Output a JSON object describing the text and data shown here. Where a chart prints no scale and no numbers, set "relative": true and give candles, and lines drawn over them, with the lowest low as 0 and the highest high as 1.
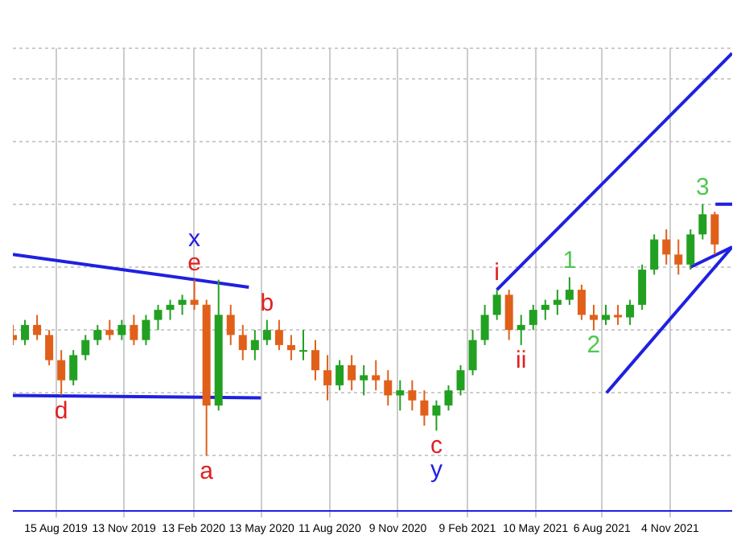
{
  "chart_data": {
    "type": "candlestick",
    "relative": true,
    "grid": true,
    "legend": false,
    "x": [
      "2019-06-19",
      "2019-07-05",
      "2019-07-21",
      "2019-08-06",
      "2019-08-22",
      "2019-09-07",
      "2019-09-23",
      "2019-10-09",
      "2019-10-25",
      "2019-11-10",
      "2019-11-26",
      "2019-12-12",
      "2019-12-28",
      "2020-01-13",
      "2020-01-29",
      "2020-02-14",
      "2020-03-01",
      "2020-03-17",
      "2020-04-02",
      "2020-04-18",
      "2020-05-04",
      "2020-05-20",
      "2020-06-05",
      "2020-06-21",
      "2020-07-07",
      "2020-07-23",
      "2020-08-08",
      "2020-08-24",
      "2020-09-09",
      "2020-09-25",
      "2020-10-11",
      "2020-10-27",
      "2020-11-12",
      "2020-11-28",
      "2020-12-14",
      "2020-12-30",
      "2021-01-15",
      "2021-01-31",
      "2021-02-16",
      "2021-03-04",
      "2021-03-20",
      "2021-04-05",
      "2021-04-21",
      "2021-05-07",
      "2021-05-23",
      "2021-06-08",
      "2021-06-24",
      "2021-07-10",
      "2021-07-26",
      "2021-08-11",
      "2021-08-27",
      "2021-09-12",
      "2021-09-28",
      "2021-10-14",
      "2021-10-30",
      "2021-11-15",
      "2021-12-01",
      "2021-12-17",
      "2022-01-02"
    ],
    "ohlc": [
      [
        0.48,
        0.52,
        0.44,
        0.46
      ],
      [
        0.46,
        0.54,
        0.44,
        0.52
      ],
      [
        0.52,
        0.56,
        0.46,
        0.48
      ],
      [
        0.48,
        0.5,
        0.36,
        0.38
      ],
      [
        0.38,
        0.42,
        0.24,
        0.3
      ],
      [
        0.3,
        0.42,
        0.28,
        0.4
      ],
      [
        0.4,
        0.48,
        0.38,
        0.46
      ],
      [
        0.46,
        0.52,
        0.44,
        0.5
      ],
      [
        0.5,
        0.54,
        0.46,
        0.48
      ],
      [
        0.48,
        0.54,
        0.46,
        0.52
      ],
      [
        0.52,
        0.56,
        0.44,
        0.46
      ],
      [
        0.46,
        0.56,
        0.44,
        0.54
      ],
      [
        0.54,
        0.6,
        0.5,
        0.58
      ],
      [
        0.58,
        0.62,
        0.54,
        0.6
      ],
      [
        0.6,
        0.64,
        0.56,
        0.62
      ],
      [
        0.62,
        0.7,
        0.58,
        0.6
      ],
      [
        0.6,
        0.62,
        0,
        0.2
      ],
      [
        0.2,
        0.7,
        0.18,
        0.56
      ],
      [
        0.56,
        0.6,
        0.44,
        0.48
      ],
      [
        0.48,
        0.52,
        0.38,
        0.42
      ],
      [
        0.42,
        0.5,
        0.38,
        0.46
      ],
      [
        0.46,
        0.54,
        0.44,
        0.5
      ],
      [
        0.5,
        0.54,
        0.42,
        0.44
      ],
      [
        0.44,
        0.48,
        0.38,
        0.42
      ],
      [
        0.42,
        0.5,
        0.38,
        0.42
      ],
      [
        0.42,
        0.46,
        0.3,
        0.34
      ],
      [
        0.34,
        0.4,
        0.22,
        0.28
      ],
      [
        0.28,
        0.38,
        0.26,
        0.36
      ],
      [
        0.36,
        0.4,
        0.26,
        0.3
      ],
      [
        0.3,
        0.36,
        0.24,
        0.32
      ],
      [
        0.32,
        0.38,
        0.26,
        0.3
      ],
      [
        0.3,
        0.34,
        0.2,
        0.24
      ],
      [
        0.24,
        0.3,
        0.18,
        0.26
      ],
      [
        0.26,
        0.3,
        0.18,
        0.22
      ],
      [
        0.22,
        0.26,
        0.12,
        0.16
      ],
      [
        0.16,
        0.22,
        0.1,
        0.2
      ],
      [
        0.2,
        0.28,
        0.18,
        0.26
      ],
      [
        0.26,
        0.36,
        0.24,
        0.34
      ],
      [
        0.34,
        0.5,
        0.32,
        0.46
      ],
      [
        0.46,
        0.6,
        0.44,
        0.56
      ],
      [
        0.56,
        0.66,
        0.54,
        0.64
      ],
      [
        0.64,
        0.66,
        0.46,
        0.5
      ],
      [
        0.5,
        0.56,
        0.44,
        0.52
      ],
      [
        0.52,
        0.6,
        0.5,
        0.58
      ],
      [
        0.58,
        0.62,
        0.54,
        0.6
      ],
      [
        0.6,
        0.66,
        0.56,
        0.62
      ],
      [
        0.62,
        0.71,
        0.6,
        0.66
      ],
      [
        0.66,
        0.68,
        0.54,
        0.56
      ],
      [
        0.56,
        0.6,
        0.5,
        0.54
      ],
      [
        0.54,
        0.6,
        0.52,
        0.56
      ],
      [
        0.56,
        0.6,
        0.52,
        0.55
      ],
      [
        0.55,
        0.62,
        0.52,
        0.6
      ],
      [
        0.6,
        0.76,
        0.58,
        0.74
      ],
      [
        0.74,
        0.88,
        0.72,
        0.86
      ],
      [
        0.86,
        0.9,
        0.76,
        0.8
      ],
      [
        0.8,
        0.86,
        0.72,
        0.76
      ],
      [
        0.76,
        0.9,
        0.74,
        0.88
      ],
      [
        0.88,
        1.0,
        0.86,
        0.96
      ],
      [
        0.96,
        0.97,
        0.8,
        0.84
      ]
    ],
    "series": [
      {
        "type": "line",
        "color": "#2020e0",
        "x": [
          "2019-06-19",
          "2020-04-26"
        ],
        "values": [
          0.8,
          0.67
        ]
      },
      {
        "type": "line",
        "color": "#2020e0",
        "x": [
          "2019-06-19",
          "2020-05-12"
        ],
        "values": [
          0.24,
          0.23
        ]
      },
      {
        "type": "line",
        "color": "#2020e0",
        "x": [
          "2021-03-20",
          "2022-01-25"
        ],
        "values": [
          0.66,
          1.6
        ]
      },
      {
        "type": "line",
        "color": "#2020e0",
        "x": [
          "2021-08-12",
          "2022-01-25"
        ],
        "values": [
          0.25,
          0.83
        ]
      },
      {
        "type": "line",
        "color": "#2020e0",
        "x": [
          "2021-12-01",
          "2022-01-25"
        ],
        "values": [
          0.75,
          0.83
        ]
      },
      {
        "type": "line",
        "color": "#2020e0",
        "x": [
          "2022-01-03",
          "2022-01-25"
        ],
        "values": [
          1.0,
          1.0
        ]
      }
    ],
    "xlim": [
      "2019-06-19",
      "2022-01-25"
    ],
    "xticks": [
      {
        "value": "2019-08-15",
        "label": "15 Aug 2019"
      },
      {
        "value": "2019-11-13",
        "label": "13 Nov 2019"
      },
      {
        "value": "2020-02-13",
        "label": "13 Feb 2020"
      },
      {
        "value": "2020-05-13",
        "label": "13 May 2020"
      },
      {
        "value": "2020-08-11",
        "label": "11 Aug 2020"
      },
      {
        "value": "2020-11-09",
        "label": "9 Nov 2020"
      },
      {
        "value": "2021-02-09",
        "label": "9 Feb 2021"
      },
      {
        "value": "2021-05-10",
        "label": "10 May 2021"
      },
      {
        "value": "2021-08-06",
        "label": "6 Aug 2021"
      },
      {
        "value": "2021-11-04",
        "label": "4 Nov 2021"
      }
    ],
    "annotations": [
      {
        "text": "e",
        "x": "2020-02-14",
        "y": 0.7
      },
      {
        "text": "x",
        "x": "2020-02-14",
        "y": 0.7
      },
      {
        "text": "a",
        "x": "2020-03-01",
        "y": 0
      },
      {
        "text": "b",
        "x": "2020-05-20",
        "y": 0.54
      },
      {
        "text": "d",
        "x": "2019-08-22",
        "y": 0.24
      },
      {
        "text": "c",
        "x": "2020-12-30",
        "y": 0.1
      },
      {
        "text": "y",
        "x": "2020-12-30",
        "y": 0.1
      },
      {
        "text": "i",
        "x": "2021-03-20",
        "y": 0.66
      },
      {
        "text": "ii",
        "x": "2021-04-21",
        "y": 0.44
      },
      {
        "text": "1",
        "x": "2021-06-24",
        "y": 0.71
      },
      {
        "text": "2",
        "x": "2021-07-26",
        "y": 0.5
      },
      {
        "text": "3",
        "x": "2021-12-17",
        "y": 1.0
      }
    ]
  }
}
